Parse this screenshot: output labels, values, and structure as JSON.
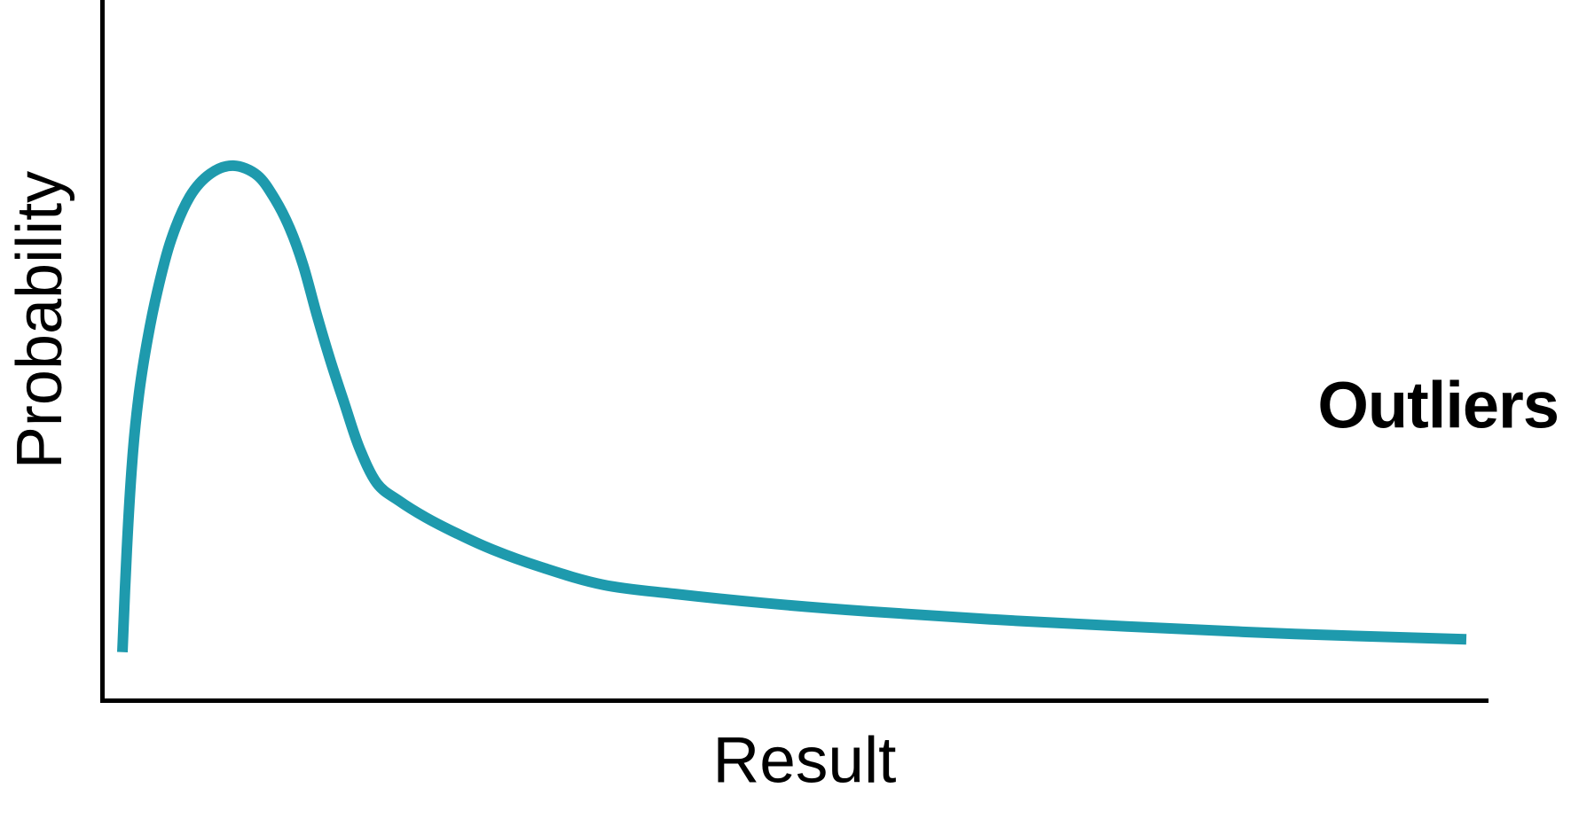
{
  "chart_data": {
    "type": "line",
    "title": "",
    "xlabel": "Result",
    "ylabel": "Probability",
    "x_range": [
      0,
      100
    ],
    "y_range": [
      0,
      1.31
    ],
    "grid": false,
    "legend": "none",
    "tick_labels": "none",
    "axis_color": "#000000",
    "text_color": "#000000",
    "annotations": [
      {
        "text": "Outliers",
        "style": "bold",
        "position": "right-middle"
      }
    ],
    "series": [
      {
        "name": "probability-distribution-curve",
        "shape": "right-skewed long-tail distribution",
        "color": "#1E9AAD",
        "points": [
          [
            1.47,
            0.09
          ],
          [
            1.79,
            0.282
          ],
          [
            2.18,
            0.448
          ],
          [
            2.62,
            0.564
          ],
          [
            3.2,
            0.663
          ],
          [
            3.97,
            0.763
          ],
          [
            4.99,
            0.862
          ],
          [
            6.33,
            0.942
          ],
          [
            7.81,
            0.985
          ],
          [
            9.47,
            1.0
          ],
          [
            11.2,
            0.982
          ],
          [
            12.48,
            0.937
          ],
          [
            13.56,
            0.882
          ],
          [
            14.52,
            0.813
          ],
          [
            15.48,
            0.722
          ],
          [
            16.44,
            0.638
          ],
          [
            17.47,
            0.556
          ],
          [
            18.55,
            0.473
          ],
          [
            19.83,
            0.406
          ],
          [
            21.43,
            0.373
          ],
          [
            23.35,
            0.342
          ],
          [
            25.59,
            0.312
          ],
          [
            28.15,
            0.282
          ],
          [
            31.67,
            0.249
          ],
          [
            36.15,
            0.216
          ],
          [
            41.27,
            0.199
          ],
          [
            47.66,
            0.182
          ],
          [
            55.34,
            0.166
          ],
          [
            64.3,
            0.151
          ],
          [
            73.9,
            0.138
          ],
          [
            86.05,
            0.124
          ],
          [
            98.4,
            0.114
          ]
        ]
      }
    ]
  }
}
